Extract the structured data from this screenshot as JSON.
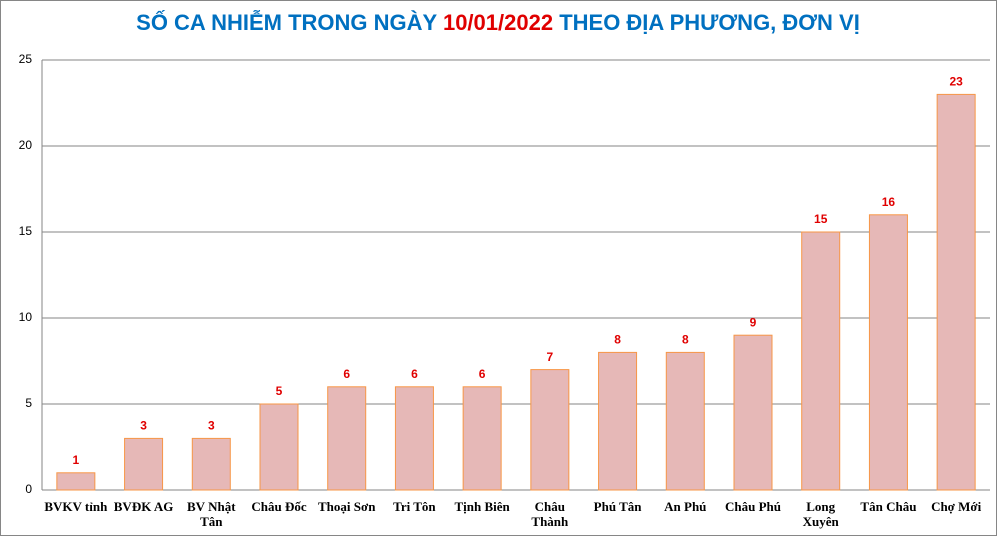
{
  "chart_data": {
    "type": "bar",
    "title": [
      "SỐ CA NHIỄM TRONG NGÀY",
      "10/01/2022",
      "THEO ĐỊA PHƯƠNG, ĐƠN VỊ"
    ],
    "title_colors": [
      "#0070c0",
      "#e00000",
      "#0070c0"
    ],
    "categories": [
      [
        "BVKV tỉnh"
      ],
      [
        "BVĐK AG"
      ],
      [
        "BV Nhật",
        "Tân"
      ],
      [
        "Châu Đốc"
      ],
      [
        "Thoại  Sơn"
      ],
      [
        "Tri Tôn"
      ],
      [
        "Tịnh Biên"
      ],
      [
        "Châu",
        "Thành"
      ],
      [
        "Phú Tân"
      ],
      [
        "An Phú"
      ],
      [
        "Châu Phú"
      ],
      [
        "Long",
        "Xuyên"
      ],
      [
        "Tân Châu"
      ],
      [
        "Chợ Mới"
      ]
    ],
    "values": [
      1,
      3,
      3,
      5,
      6,
      6,
      6,
      7,
      8,
      8,
      9,
      15,
      16,
      23
    ],
    "color": "#e6b8b7",
    "edge_color": "#f79646",
    "label_color": "#e00000",
    "ylim": [
      0,
      25
    ],
    "yticks": [
      0,
      5,
      10,
      15,
      20,
      25
    ],
    "grid": true
  }
}
